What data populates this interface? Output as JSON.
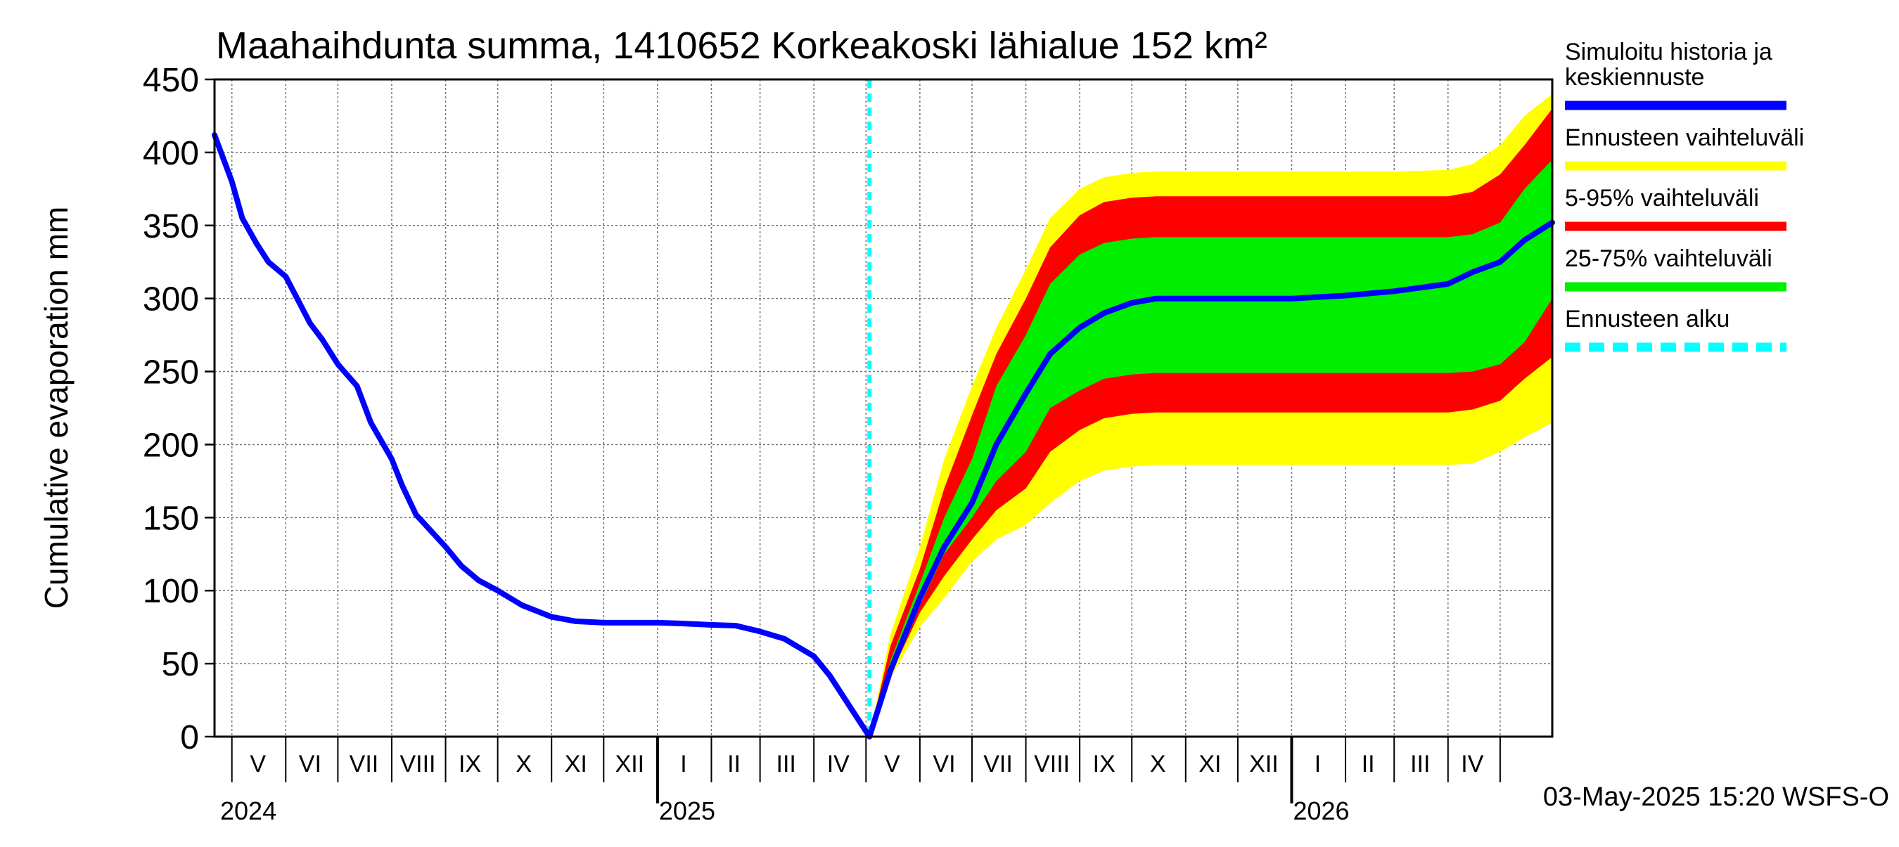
{
  "chart_data": {
    "type": "area",
    "title": "Maahaihdunta summa, 1410652 Korkeakoski lähialue 152 km²",
    "ylabel": "Cumulative evaporation   mm",
    "xlabel": "",
    "ylim": [
      0,
      450
    ],
    "xlim": [
      "2024-04-21",
      "2026-05-31"
    ],
    "y_ticks": [
      "0",
      "50",
      "100",
      "150",
      "200",
      "250",
      "300",
      "350",
      "400",
      "450"
    ],
    "grid": true,
    "legend_position": "right",
    "forecast_start": "2025-05-03",
    "month_labels": [
      {
        "label": "V",
        "date": "2024-05-16"
      },
      {
        "label": "VI",
        "date": "2024-06-15"
      },
      {
        "label": "VII",
        "date": "2024-07-16"
      },
      {
        "label": "VIII",
        "date": "2024-08-16"
      },
      {
        "label": "IX",
        "date": "2024-09-15"
      },
      {
        "label": "X",
        "date": "2024-10-16"
      },
      {
        "label": "XI",
        "date": "2024-11-15"
      },
      {
        "label": "XII",
        "date": "2024-12-16"
      },
      {
        "label": "I",
        "date": "2025-01-16"
      },
      {
        "label": "II",
        "date": "2025-02-14"
      },
      {
        "label": "III",
        "date": "2025-03-16"
      },
      {
        "label": "IV",
        "date": "2025-04-15"
      },
      {
        "label": "V",
        "date": "2025-05-16"
      },
      {
        "label": "VI",
        "date": "2025-06-15"
      },
      {
        "label": "VII",
        "date": "2025-07-16"
      },
      {
        "label": "VIII",
        "date": "2025-08-16"
      },
      {
        "label": "IX",
        "date": "2025-09-15"
      },
      {
        "label": "X",
        "date": "2025-10-16"
      },
      {
        "label": "XI",
        "date": "2025-11-15"
      },
      {
        "label": "XII",
        "date": "2025-12-16"
      },
      {
        "label": "I",
        "date": "2026-01-16"
      },
      {
        "label": "II",
        "date": "2026-02-14"
      },
      {
        "label": "III",
        "date": "2026-03-16"
      },
      {
        "label": "IV",
        "date": "2026-04-15"
      }
    ],
    "year_labels": [
      {
        "label": "2024",
        "date": "2024-04-21"
      },
      {
        "label": "2025",
        "date": "2025-01-01"
      },
      {
        "label": "2026",
        "date": "2026-01-01"
      }
    ],
    "month_boundaries": [
      "2024-05-01",
      "2024-06-01",
      "2024-07-01",
      "2024-08-01",
      "2024-09-01",
      "2024-10-01",
      "2024-11-01",
      "2024-12-01",
      "2025-01-01",
      "2025-02-01",
      "2025-03-01",
      "2025-04-01",
      "2025-05-01",
      "2025-06-01",
      "2025-07-01",
      "2025-08-01",
      "2025-09-01",
      "2025-10-01",
      "2025-11-01",
      "2025-12-01",
      "2026-01-01",
      "2026-02-01",
      "2026-03-01",
      "2026-04-01",
      "2026-05-01"
    ],
    "year_boundaries": [
      "2025-01-01",
      "2026-01-01"
    ],
    "x": [
      "2025-05-03",
      "2025-05-15",
      "2025-06-01",
      "2025-06-15",
      "2025-07-01",
      "2025-07-15",
      "2025-08-01",
      "2025-08-15",
      "2025-09-01",
      "2025-09-15",
      "2025-10-01",
      "2025-10-15",
      "2025-11-01",
      "2025-12-01",
      "2026-01-01",
      "2026-02-01",
      "2026-03-01",
      "2026-04-01",
      "2026-04-15",
      "2026-05-01",
      "2026-05-15",
      "2026-05-31"
    ],
    "series": [
      {
        "name": "Simuloitu historia ja keskiennuste",
        "color": "#0000ff",
        "history": [
          [
            "2024-04-21",
            412
          ],
          [
            "2024-05-01",
            380
          ],
          [
            "2024-05-07",
            355
          ],
          [
            "2024-05-15",
            338
          ],
          [
            "2024-05-22",
            325
          ],
          [
            "2024-06-01",
            315
          ],
          [
            "2024-06-15",
            283
          ],
          [
            "2024-06-22",
            272
          ],
          [
            "2024-07-01",
            255
          ],
          [
            "2024-07-12",
            240
          ],
          [
            "2024-07-20",
            215
          ],
          [
            "2024-08-01",
            190
          ],
          [
            "2024-08-07",
            172
          ],
          [
            "2024-08-15",
            152
          ],
          [
            "2024-09-01",
            130
          ],
          [
            "2024-09-10",
            117
          ],
          [
            "2024-09-20",
            107
          ],
          [
            "2024-10-01",
            100
          ],
          [
            "2024-10-15",
            90
          ],
          [
            "2024-11-01",
            82
          ],
          [
            "2024-11-15",
            79
          ],
          [
            "2024-12-01",
            78
          ],
          [
            "2025-01-01",
            78
          ],
          [
            "2025-01-15",
            77.5
          ],
          [
            "2025-02-01",
            76.5
          ],
          [
            "2025-02-15",
            76
          ],
          [
            "2025-03-01",
            72
          ],
          [
            "2025-03-15",
            67
          ],
          [
            "2025-04-01",
            55
          ],
          [
            "2025-04-10",
            42
          ],
          [
            "2025-04-22",
            20
          ],
          [
            "2025-05-03",
            0
          ]
        ],
        "values": [
          0,
          45,
          95,
          130,
          160,
          200,
          235,
          262,
          280,
          290,
          297,
          300,
          300,
          300,
          300,
          302,
          305,
          310,
          318,
          325,
          340,
          352
        ]
      },
      {
        "name": "Ennusteen vaihteluväli",
        "color": "#ffff00",
        "upper": [
          0,
          70,
          130,
          190,
          240,
          280,
          320,
          355,
          375,
          383,
          386,
          387,
          387,
          387,
          387,
          387,
          387,
          388,
          392,
          405,
          425,
          440
        ],
        "lower": [
          0,
          40,
          75,
          95,
          120,
          135,
          145,
          160,
          175,
          182,
          185,
          186,
          186,
          186,
          186,
          186,
          186,
          186,
          187,
          195,
          205,
          215
        ]
      },
      {
        "name": "5-95% vaihteluväli",
        "color": "#ff0000",
        "upper": [
          0,
          62,
          115,
          170,
          220,
          262,
          300,
          335,
          357,
          366,
          369,
          370,
          370,
          370,
          370,
          370,
          370,
          370,
          373,
          385,
          405,
          430
        ],
        "lower": [
          0,
          42,
          85,
          110,
          135,
          155,
          170,
          195,
          210,
          218,
          221,
          222,
          222,
          222,
          222,
          222,
          222,
          222,
          224,
          230,
          245,
          260
        ]
      },
      {
        "name": "25-75% vaihteluväli",
        "color": "#00ee00",
        "upper": [
          0,
          52,
          105,
          150,
          190,
          240,
          275,
          310,
          330,
          338,
          341,
          342,
          342,
          342,
          342,
          342,
          342,
          342,
          344,
          352,
          375,
          395
        ],
        "lower": [
          0,
          45,
          90,
          125,
          150,
          175,
          195,
          225,
          237,
          245,
          248,
          249,
          249,
          249,
          249,
          249,
          249,
          249,
          250,
          255,
          270,
          300
        ]
      },
      {
        "name": "Ennusteen alku",
        "color": "#00ffff"
      }
    ]
  },
  "legend": [
    {
      "label": "Simuloitu historia ja keskiennuste",
      "lines": [
        "Simuloitu historia ja",
        "keskiennuste"
      ],
      "color": "#0000ff",
      "style": "solid"
    },
    {
      "label": "Ennusteen vaihteluväli",
      "lines": [
        "Ennusteen vaihteluväli"
      ],
      "color": "#ffff00",
      "style": "solid"
    },
    {
      "label": "5-95% vaihteluväli",
      "lines": [
        "5-95% vaihteluväli"
      ],
      "color": "#ff0000",
      "style": "solid"
    },
    {
      "label": "25-75% vaihteluväli",
      "lines": [
        "25-75% vaihteluväli"
      ],
      "color": "#00ee00",
      "style": "solid"
    },
    {
      "label": "Ennusteen alku",
      "lines": [
        "Ennusteen alku"
      ],
      "color": "#00ffff",
      "style": "dashed"
    }
  ],
  "footer": {
    "timestamp": "03-May-2025 15:20 WSFS-O"
  }
}
